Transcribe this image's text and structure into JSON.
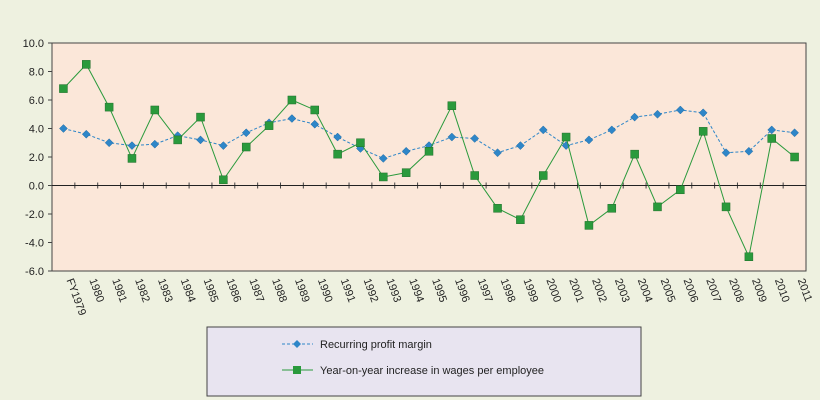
{
  "chart_data": {
    "type": "line",
    "x": [
      "FY1979",
      "1980",
      "1981",
      "1982",
      "1983",
      "1984",
      "1985",
      "1986",
      "1987",
      "1988",
      "1989",
      "1990",
      "1991",
      "1992",
      "1993",
      "1994",
      "1995",
      "1996",
      "1997",
      "1998",
      "1999",
      "2000",
      "2001",
      "2002",
      "2003",
      "2004",
      "2005",
      "2006",
      "2007",
      "2008",
      "2009",
      "2010",
      "2011"
    ],
    "ylim": [
      -6.0,
      10.0
    ],
    "yticks": [
      "10.0",
      "8.0",
      "6.0",
      "4.0",
      "2.0",
      "0.0",
      "-2.0",
      "-4.0",
      "-6.0"
    ],
    "grid": false,
    "legend_position": "bottom",
    "plot_background": "#fbe7d9",
    "series": [
      {
        "name": "Recurring profit margin",
        "color": "#2e86c8",
        "marker": "diamond",
        "line_style": "dashed",
        "values": [
          4.0,
          3.6,
          3.0,
          2.8,
          2.9,
          3.5,
          3.2,
          2.8,
          3.7,
          4.4,
          4.7,
          4.3,
          3.4,
          2.6,
          1.9,
          2.4,
          2.8,
          3.4,
          3.3,
          2.3,
          2.8,
          3.9,
          2.8,
          3.2,
          3.9,
          4.8,
          5.0,
          5.3,
          5.1,
          2.3,
          2.4,
          3.9,
          3.7
        ]
      },
      {
        "name": "Year-on-year increase in wages per employee",
        "color": "#2a9a3c",
        "marker": "square",
        "line_style": "solid",
        "values": [
          6.8,
          8.5,
          5.5,
          1.9,
          5.3,
          3.2,
          4.8,
          0.4,
          2.7,
          4.2,
          6.0,
          5.3,
          2.2,
          3.0,
          0.6,
          0.9,
          2.4,
          5.6,
          0.7,
          -1.6,
          -2.4,
          0.7,
          3.4,
          -2.8,
          -1.6,
          2.2,
          -1.5,
          -0.3,
          3.8,
          -1.5,
          -5.0,
          3.3,
          2.0
        ]
      }
    ]
  }
}
